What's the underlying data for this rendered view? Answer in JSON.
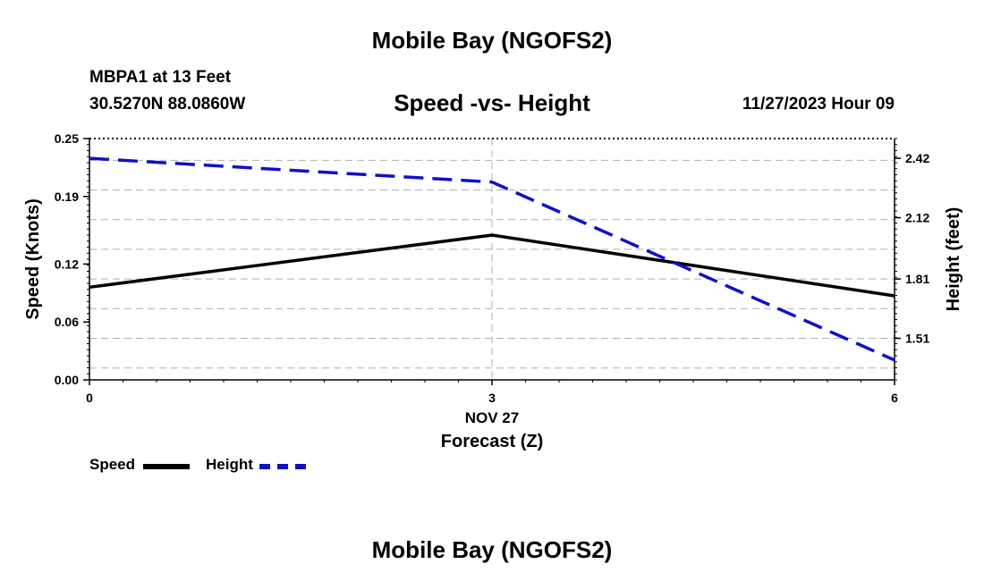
{
  "header": {
    "title": "Mobile Bay (NGOFS2)",
    "station": "MBPA1 at 13 Feet",
    "coords": "30.5270N  88.0860W",
    "chart_title": "Speed -vs- Height",
    "datetime": "11/27/2023 Hour 09"
  },
  "footer": {
    "title": "Mobile Bay (NGOFS2)"
  },
  "legend": {
    "speed_label": "Speed",
    "height_label": "Height"
  },
  "colors": {
    "speed": "#000000",
    "height": "#1010c8",
    "grid": "#b0b0b0"
  },
  "chart_data": {
    "type": "line",
    "title": "Speed -vs- Height",
    "xlabel": "Forecast (Z)",
    "x_date_label": "NOV 27",
    "x": [
      0,
      3,
      6
    ],
    "x_ticks": [
      "0",
      "3",
      "6"
    ],
    "xlim": [
      0,
      6
    ],
    "ylabel_left": "Speed (Knots)",
    "ylim_left": [
      0,
      0.25
    ],
    "yticks_left": [
      "0.00",
      "0.06",
      "0.12",
      "0.19",
      "0.25"
    ],
    "ylabel_right": "Height (feet)",
    "ylim_right": [
      1.3,
      2.52
    ],
    "yticks_right": [
      "1.51",
      "1.81",
      "2.12",
      "2.42"
    ],
    "grid": true,
    "legend_position": "bottom-left",
    "series": [
      {
        "name": "Speed",
        "axis": "left",
        "style": "solid",
        "values": [
          0.096,
          0.15,
          0.087
        ]
      },
      {
        "name": "Height",
        "axis": "right",
        "style": "dashed",
        "values": [
          2.42,
          2.3,
          1.4
        ]
      }
    ]
  }
}
